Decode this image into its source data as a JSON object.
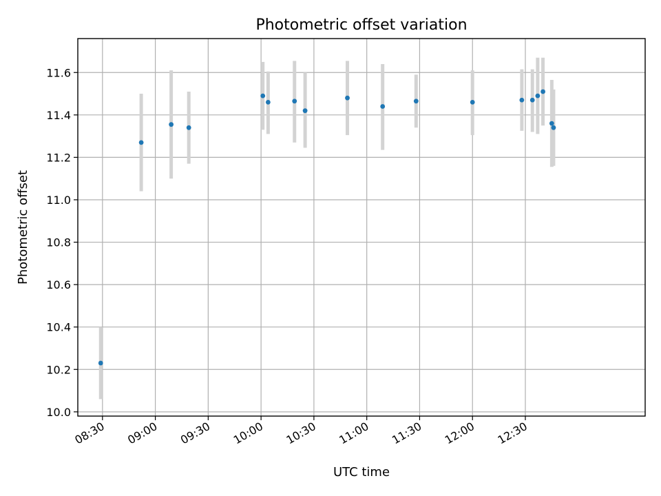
{
  "chart_data": {
    "type": "scatter",
    "title": "Photometric offset variation",
    "xlabel": "UTC time",
    "ylabel": "Photometric offset",
    "xlim": [
      "08:16",
      "13:38"
    ],
    "ylim": [
      9.98,
      11.76
    ],
    "x_ticks": [
      "08:30",
      "09:00",
      "09:30",
      "10:00",
      "10:30",
      "11:00",
      "11:30",
      "12:00",
      "12:30"
    ],
    "y_ticks": [
      10.0,
      10.2,
      10.4,
      10.6,
      10.8,
      11.0,
      11.2,
      11.4,
      11.6
    ],
    "grid": true,
    "point_color": "#1f77b4",
    "errorbar_color": "#d3d3d3",
    "series": [
      {
        "points": [
          {
            "x": "08:29",
            "y": 10.23,
            "low": 10.06,
            "high": 10.4
          },
          {
            "x": "08:52",
            "y": 11.27,
            "low": 11.04,
            "high": 11.5
          },
          {
            "x": "09:09",
            "y": 11.355,
            "low": 11.1,
            "high": 11.61
          },
          {
            "x": "09:19",
            "y": 11.34,
            "low": 11.17,
            "high": 11.51
          },
          {
            "x": "10:01",
            "y": 11.49,
            "low": 11.33,
            "high": 11.65
          },
          {
            "x": "10:04",
            "y": 11.46,
            "low": 11.31,
            "high": 11.605
          },
          {
            "x": "10:19",
            "y": 11.465,
            "low": 11.27,
            "high": 11.655
          },
          {
            "x": "10:25",
            "y": 11.42,
            "low": 11.245,
            "high": 11.6
          },
          {
            "x": "10:49",
            "y": 11.48,
            "low": 11.305,
            "high": 11.655
          },
          {
            "x": "11:09",
            "y": 11.44,
            "low": 11.235,
            "high": 11.64
          },
          {
            "x": "11:28",
            "y": 11.465,
            "low": 11.34,
            "high": 11.59
          },
          {
            "x": "12:00",
            "y": 11.46,
            "low": 11.305,
            "high": 11.61
          },
          {
            "x": "12:28",
            "y": 11.47,
            "low": 11.325,
            "high": 11.615
          },
          {
            "x": "12:34",
            "y": 11.47,
            "low": 11.32,
            "high": 11.615
          },
          {
            "x": "12:37",
            "y": 11.49,
            "low": 11.31,
            "high": 11.67
          },
          {
            "x": "12:40",
            "y": 11.51,
            "low": 11.35,
            "high": 11.67
          },
          {
            "x": "12:45",
            "y": 11.36,
            "low": 11.155,
            "high": 11.565
          },
          {
            "x": "12:46",
            "y": 11.34,
            "low": 11.16,
            "high": 11.52
          }
        ]
      }
    ]
  }
}
